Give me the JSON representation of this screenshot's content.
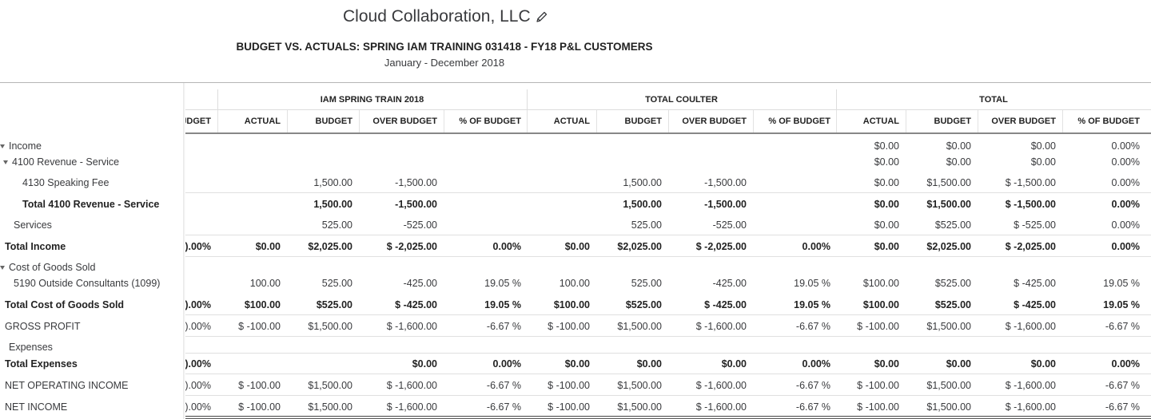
{
  "company": "Cloud Collaboration, LLC",
  "report_title": "BUDGET VS. ACTUALS: SPRING IAM TRAINING 031418 - FY18 P&L CUSTOMERS",
  "date_range": "January - December 2018",
  "groups": [
    "IAM SPRING TRAIN 2018",
    "TOTAL COULTER",
    "TOTAL"
  ],
  "columns": [
    "ACTUAL",
    "BUDGET",
    "OVER BUDGET",
    "% OF BUDGET"
  ],
  "partial_column_header": "JDGET",
  "rows": [
    {
      "label": "Income",
      "indent": 0,
      "bold": false,
      "toggle": true,
      "partial": "",
      "cells": [
        "",
        "",
        "",
        "",
        "",
        "",
        "",
        "",
        "$0.00",
        "$0.00",
        "$0.00",
        "0.00%"
      ]
    },
    {
      "label": "4100 Revenue - Service",
      "indent": 1,
      "bold": false,
      "toggle": true,
      "partial": "",
      "cells": [
        "",
        "",
        "",
        "",
        "",
        "",
        "",
        "",
        "$0.00",
        "$0.00",
        "$0.00",
        "0.00%"
      ]
    },
    {
      "label": "4130 Speaking Fee",
      "indent": 2,
      "bold": false,
      "toggle": false,
      "partial": "",
      "cells": [
        "",
        "1,500.00",
        "-1,500.00",
        "",
        "",
        "1,500.00",
        "-1,500.00",
        "",
        "$0.00",
        "$1,500.00",
        "$ -1,500.00",
        "0.00%"
      ]
    },
    {
      "label": "Total 4100 Revenue - Service",
      "indent": 2,
      "bold": true,
      "toggle": false,
      "partial": "",
      "cells": [
        "",
        "1,500.00",
        "-1,500.00",
        "",
        "",
        "1,500.00",
        "-1,500.00",
        "",
        "$0.00",
        "$1,500.00",
        "$ -1,500.00",
        "0.00%"
      ]
    },
    {
      "label": "Services",
      "indent": 1,
      "bold": false,
      "toggle": false,
      "partial": "",
      "cells": [
        "",
        "525.00",
        "-525.00",
        "",
        "",
        "525.00",
        "-525.00",
        "",
        "$0.00",
        "$525.00",
        "$ -525.00",
        "0.00%"
      ]
    },
    {
      "label": "Total Income",
      "indent": 0,
      "bold": true,
      "toggle": false,
      "partial": ").00%",
      "cells": [
        "$0.00",
        "$2,025.00",
        "$ -2,025.00",
        "0.00%",
        "$0.00",
        "$2,025.00",
        "$ -2,025.00",
        "0.00%",
        "$0.00",
        "$2,025.00",
        "$ -2,025.00",
        "0.00%"
      ]
    },
    {
      "label": "Cost of Goods Sold",
      "indent": 0,
      "bold": false,
      "toggle": true,
      "partial": "",
      "cells": [
        "",
        "",
        "",
        "",
        "",
        "",
        "",
        "",
        "",
        "",
        "",
        ""
      ]
    },
    {
      "label": "5190 Outside Consultants (1099)",
      "indent": 1,
      "bold": false,
      "toggle": false,
      "partial": "",
      "cells": [
        "100.00",
        "525.00",
        "-425.00",
        "19.05 %",
        "100.00",
        "525.00",
        "-425.00",
        "19.05 %",
        "$100.00",
        "$525.00",
        "$ -425.00",
        "19.05 %"
      ]
    },
    {
      "label": "Total Cost of Goods Sold",
      "indent": 0,
      "bold": true,
      "toggle": false,
      "partial": ").00%",
      "cells": [
        "$100.00",
        "$525.00",
        "$ -425.00",
        "19.05 %",
        "$100.00",
        "$525.00",
        "$ -425.00",
        "19.05 %",
        "$100.00",
        "$525.00",
        "$ -425.00",
        "19.05 %"
      ]
    },
    {
      "label": "GROSS PROFIT",
      "indent": 0,
      "bold": false,
      "toggle": false,
      "partial": ").00%",
      "cells": [
        "$ -100.00",
        "$1,500.00",
        "$ -1,600.00",
        "-6.67 %",
        "$ -100.00",
        "$1,500.00",
        "$ -1,600.00",
        "-6.67 %",
        "$ -100.00",
        "$1,500.00",
        "$ -1,600.00",
        "-6.67 %"
      ]
    },
    {
      "label": "Expenses",
      "indent": 1,
      "bold": false,
      "toggle": false,
      "partial": "",
      "cells": [
        "",
        "",
        "",
        "",
        "",
        "",
        "",
        "",
        "",
        "",
        "",
        ""
      ]
    },
    {
      "label": "Total Expenses",
      "indent": 0,
      "bold": true,
      "toggle": false,
      "partial": ").00%",
      "cells": [
        "",
        "",
        "$0.00",
        "0.00%",
        "$0.00",
        "$0.00",
        "$0.00",
        "0.00%",
        "$0.00",
        "$0.00",
        "$0.00",
        "0.00%"
      ]
    },
    {
      "label": "NET OPERATING INCOME",
      "indent": 0,
      "bold": false,
      "toggle": false,
      "partial": ").00%",
      "cells": [
        "$ -100.00",
        "$1,500.00",
        "$ -1,600.00",
        "-6.67 %",
        "$ -100.00",
        "$1,500.00",
        "$ -1,600.00",
        "-6.67 %",
        "$ -100.00",
        "$1,500.00",
        "$ -1,600.00",
        "-6.67 %"
      ]
    },
    {
      "label": "NET INCOME",
      "indent": 0,
      "bold": false,
      "toggle": false,
      "partial": ").00%",
      "cells": [
        "$ -100.00",
        "$1,500.00",
        "$ -1,600.00",
        "-6.67 %",
        "$ -100.00",
        "$1,500.00",
        "$ -1,600.00",
        "-6.67 %",
        "$ -100.00",
        "$1,500.00",
        "$ -1,600.00",
        "-6.67 %"
      ]
    }
  ]
}
